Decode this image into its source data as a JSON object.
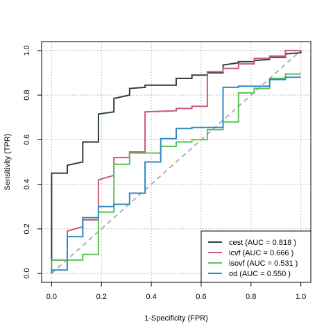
{
  "chart_data": {
    "type": "line",
    "xlabel": "1-Specificity (FPR)",
    "ylabel": "Sensitivity (TPR)",
    "xlim": [
      -0.04,
      1.04
    ],
    "ylim": [
      -0.04,
      1.04
    ],
    "x_ticks": [
      "0.0",
      "0.2",
      "0.4",
      "0.6",
      "0.8",
      "1.0"
    ],
    "y_ticks": [
      "0.0",
      "0.2",
      "0.4",
      "0.6",
      "0.8",
      "1.0"
    ],
    "grid": true,
    "legend_position": "bottom-right",
    "reference_line": {
      "x": [
        0,
        1
      ],
      "y": [
        0,
        1
      ],
      "color": "#b0b0b0",
      "dashed": true
    },
    "series": [
      {
        "name": "cest (AUC =  0.818 )",
        "color": "#2f3f3f",
        "x": [
          0.0,
          0.0,
          0.063,
          0.063,
          0.125,
          0.125,
          0.188,
          0.188,
          0.25,
          0.25,
          0.313,
          0.313,
          0.375,
          0.375,
          0.5,
          0.5,
          0.563,
          0.563,
          0.625,
          0.625,
          0.688,
          0.688,
          0.75,
          0.75,
          0.813,
          0.813,
          0.875,
          0.875,
          0.938,
          0.938,
          1.0,
          1.0
        ],
        "y": [
          0.0,
          0.45,
          0.45,
          0.485,
          0.5,
          0.59,
          0.59,
          0.715,
          0.725,
          0.785,
          0.8,
          0.83,
          0.835,
          0.845,
          0.845,
          0.875,
          0.875,
          0.89,
          0.89,
          0.9,
          0.9,
          0.935,
          0.945,
          0.95,
          0.95,
          0.955,
          0.96,
          0.97,
          0.97,
          0.985,
          0.99,
          1.0
        ]
      },
      {
        "name": "icvf (AUC =  0.666 )",
        "color": "#c85a74",
        "x": [
          0.0,
          0.0,
          0.063,
          0.063,
          0.125,
          0.125,
          0.188,
          0.188,
          0.25,
          0.25,
          0.313,
          0.313,
          0.375,
          0.375,
          0.5,
          0.5,
          0.563,
          0.563,
          0.625,
          0.625,
          0.688,
          0.688,
          0.75,
          0.75,
          0.813,
          0.813,
          0.875,
          0.875,
          0.938,
          0.938,
          1.0
        ],
        "y": [
          0.0,
          0.06,
          0.06,
          0.19,
          0.21,
          0.24,
          0.24,
          0.42,
          0.44,
          0.52,
          0.52,
          0.545,
          0.545,
          0.725,
          0.73,
          0.74,
          0.74,
          0.75,
          0.75,
          0.905,
          0.905,
          0.92,
          0.92,
          0.94,
          0.94,
          0.965,
          0.965,
          0.975,
          0.975,
          1.0,
          1.0
        ]
      },
      {
        "name": "isovf (AUC =  0.531 )",
        "color": "#5bc05a",
        "x": [
          0.0,
          0.0,
          0.125,
          0.125,
          0.188,
          0.188,
          0.25,
          0.25,
          0.313,
          0.313,
          0.438,
          0.438,
          0.5,
          0.5,
          0.563,
          0.563,
          0.625,
          0.625,
          0.688,
          0.688,
          0.75,
          0.75,
          0.813,
          0.813,
          0.875,
          0.875,
          0.938,
          0.938,
          1.0
        ],
        "y": [
          0.0,
          0.06,
          0.06,
          0.085,
          0.085,
          0.275,
          0.275,
          0.49,
          0.49,
          0.54,
          0.54,
          0.57,
          0.57,
          0.59,
          0.59,
          0.6,
          0.6,
          0.645,
          0.645,
          0.68,
          0.68,
          0.81,
          0.81,
          0.83,
          0.83,
          0.875,
          0.875,
          0.895,
          0.895
        ]
      },
      {
        "name": "od (AUC =  0.550 )",
        "color": "#2e8ac4",
        "x": [
          0.0,
          0.0,
          0.063,
          0.063,
          0.125,
          0.125,
          0.188,
          0.188,
          0.25,
          0.25,
          0.313,
          0.313,
          0.375,
          0.375,
          0.438,
          0.438,
          0.5,
          0.5,
          0.563,
          0.563,
          0.688,
          0.688,
          0.75,
          0.75,
          0.875,
          0.875,
          0.938,
          0.938,
          1.0
        ],
        "y": [
          0.0,
          0.015,
          0.015,
          0.165,
          0.165,
          0.25,
          0.25,
          0.3,
          0.3,
          0.31,
          0.31,
          0.36,
          0.36,
          0.5,
          0.5,
          0.605,
          0.605,
          0.65,
          0.65,
          0.655,
          0.655,
          0.835,
          0.835,
          0.84,
          0.84,
          0.87,
          0.87,
          0.88,
          0.88
        ]
      }
    ]
  }
}
